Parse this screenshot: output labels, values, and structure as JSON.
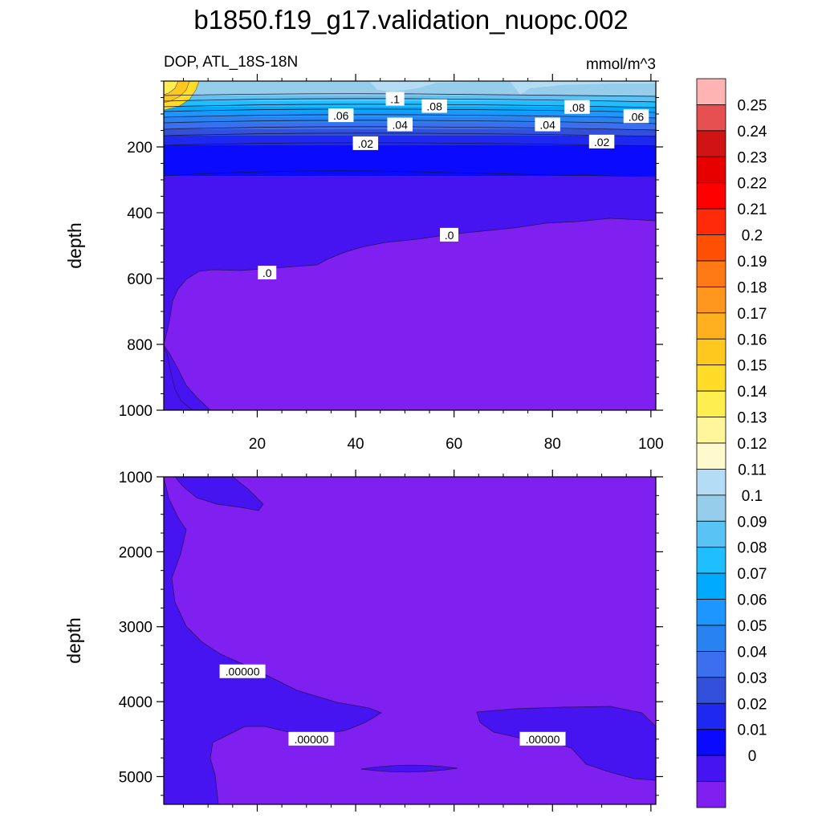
{
  "title": "b1850.f19_g17.validation_nuopc.002",
  "subtitle_left": "DOP, ATL_18S-18N",
  "subtitle_right": "mmol/m^3",
  "chart_data": [
    {
      "type": "heatmap",
      "panel": "top",
      "ylabel": "depth",
      "ylim": [
        1000,
        0
      ],
      "xlim": [
        1,
        101
      ],
      "y_ticks": [
        200,
        400,
        600,
        800,
        1000
      ],
      "x_ticks": [
        20,
        40,
        60,
        80,
        100
      ],
      "y_tick_labels": [
        "200",
        "400",
        "600",
        "800",
        "1000"
      ],
      "x_tick_labels": [
        "20",
        "40",
        "60",
        "80",
        "100"
      ],
      "contour_labels": [
        {
          "text": ".1",
          "x": 48,
          "y": 55
        },
        {
          "text": ".08",
          "x": 56,
          "y": 77
        },
        {
          "text": ".08",
          "x": 85,
          "y": 80
        },
        {
          "text": ".06",
          "x": 37,
          "y": 105
        },
        {
          "text": ".06",
          "x": 97,
          "y": 108
        },
        {
          "text": ".04",
          "x": 49,
          "y": 133
        },
        {
          "text": ".04",
          "x": 79,
          "y": 133
        },
        {
          "text": ".02",
          "x": 42,
          "y": 190
        },
        {
          "text": ".02",
          "x": 90,
          "y": 185
        },
        {
          "text": ".0",
          "x": 22,
          "y": 583
        },
        {
          "text": ".0",
          "x": 59,
          "y": 468
        }
      ]
    },
    {
      "type": "heatmap",
      "panel": "bottom",
      "ylabel": "depth",
      "ylim": [
        5370,
        1000
      ],
      "xlim": [
        1,
        101
      ],
      "y_ticks": [
        1000,
        2000,
        3000,
        4000,
        5000
      ],
      "y_tick_labels": [
        "1000",
        "2000",
        "3000",
        "4000",
        "5000"
      ],
      "contour_labels": [
        {
          "text": ".00000",
          "x": 17,
          "y": 3600
        },
        {
          "text": ".00000",
          "x": 31,
          "y": 4500
        },
        {
          "text": ".00000",
          "x": 78,
          "y": 4500
        }
      ]
    }
  ],
  "colorbar": {
    "labels": [
      "0.25",
      "0.24",
      "0.23",
      "0.22",
      "0.21",
      "0.2",
      "0.19",
      "0.18",
      "0.17",
      "0.16",
      "0.15",
      "0.14",
      "0.13",
      "0.12",
      "0.11",
      "0.1",
      "0.09",
      "0.08",
      "0.07",
      "0.06",
      "0.05",
      "0.04",
      "0.03",
      "0.02",
      "0.01",
      "0"
    ],
    "colors": [
      "#ffb4b4",
      "#e65050",
      "#d01414",
      "#e60000",
      "#ff0000",
      "#ff2a0a",
      "#ff5005",
      "#ff7a14",
      "#ff961e",
      "#ffb01e",
      "#ffc81e",
      "#ffdc28",
      "#ffee50",
      "#fff59a",
      "#fffacd",
      "#b4dcf4",
      "#96cdeb",
      "#5ac3f5",
      "#1ebeff",
      "#00aaff",
      "#1e96ff",
      "#2882f0",
      "#3c6ef0",
      "#3250dc",
      "#1e28f0",
      "#0a0aff",
      "#4614f0",
      "#8020f0"
    ]
  }
}
